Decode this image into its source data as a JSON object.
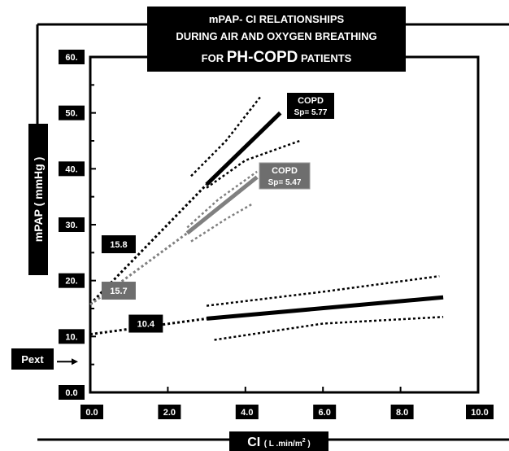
{
  "chart_data": {
    "type": "line",
    "title_lines": [
      "mPAP- CI  RELATIONSHIPS",
      "DURING AIR AND OXYGEN BREATHING"
    ],
    "title_line3_prefix": "FOR ",
    "title_line3_big": "PH-COPD",
    "title_line3_suffix": " PATIENTS",
    "ylabel": "mPAP  ( mmHg )",
    "xlabel_main": "CI",
    "xlabel_unit": "( L .min/m",
    "xlabel_sup": "2",
    "xlabel_close": " )",
    "xlim": [
      0,
      10
    ],
    "ylim": [
      0,
      60
    ],
    "x_ticks": [
      {
        "value": 0,
        "label": "0.0"
      },
      {
        "value": 2,
        "label": "2.0"
      },
      {
        "value": 4,
        "label": "4.0"
      },
      {
        "value": 6,
        "label": "6.0"
      },
      {
        "value": 8,
        "label": "8.0"
      },
      {
        "value": 10,
        "label": "10.0"
      }
    ],
    "y_ticks": [
      {
        "value": 0,
        "label": "0.0"
      },
      {
        "value": 10,
        "label": "10."
      },
      {
        "value": 20,
        "label": "20."
      },
      {
        "value": 30,
        "label": "30."
      },
      {
        "value": 40,
        "label": "40."
      },
      {
        "value": 50,
        "label": "50."
      },
      {
        "value": 60,
        "label": "60."
      }
    ],
    "pext_label": "Pext",
    "pext_y": 5.5,
    "series": [
      {
        "name": "COPD Sp= 5.77",
        "label_lines": [
          "COPD",
          "Sp= 5.77"
        ],
        "color": "#000000",
        "line": [
          [
            3.0,
            37.2
          ],
          [
            4.9,
            50.0
          ]
        ],
        "extrapolation": [
          [
            0.0,
            15.8
          ],
          [
            3.0,
            37.2
          ]
        ],
        "ci_upper": [
          [
            2.6,
            38.7
          ],
          [
            3.5,
            45
          ],
          [
            4.4,
            53.0
          ]
        ],
        "ci_lower": [
          [
            3.0,
            36.6
          ],
          [
            4.0,
            41.5
          ],
          [
            5.4,
            45.0
          ]
        ],
        "intercept": 15.8
      },
      {
        "name": "COPD Sp= 5.47",
        "label_lines": [
          "COPD",
          "Sp= 5.47"
        ],
        "color": "#808080",
        "line": [
          [
            2.5,
            28.5
          ],
          [
            4.3,
            38.5
          ]
        ],
        "extrapolation": [
          [
            0.0,
            15.7
          ],
          [
            2.5,
            28.5
          ]
        ],
        "ci_upper": [
          [
            2.5,
            29.5
          ],
          [
            3.3,
            34.5
          ],
          [
            4.3,
            39.5
          ]
        ],
        "ci_lower": [
          [
            2.6,
            27.0
          ],
          [
            3.5,
            31.0
          ],
          [
            4.2,
            33.8
          ]
        ],
        "intercept": 15.7
      },
      {
        "name": "10.4",
        "color": "#000000",
        "line": [
          [
            3.0,
            13.2
          ],
          [
            9.1,
            17.0
          ]
        ],
        "extrapolation": [
          [
            0.0,
            10.4
          ],
          [
            3.0,
            13.2
          ]
        ],
        "ci_upper": [
          [
            3.0,
            15.5
          ],
          [
            6.0,
            18.0
          ],
          [
            9.0,
            20.8
          ]
        ],
        "ci_lower": [
          [
            3.2,
            9.4
          ],
          [
            6.0,
            12.3
          ],
          [
            9.1,
            13.5
          ]
        ],
        "intercept": 10.4
      }
    ],
    "intercept_labels": [
      {
        "text": "15.8",
        "x": 0.25,
        "y": 26.5,
        "style": "black"
      },
      {
        "text": "15.7",
        "x": 0.25,
        "y": 18.2,
        "style": "gray"
      },
      {
        "text": "10.4",
        "x": 0.95,
        "y": 12.3,
        "style": "black"
      }
    ]
  }
}
